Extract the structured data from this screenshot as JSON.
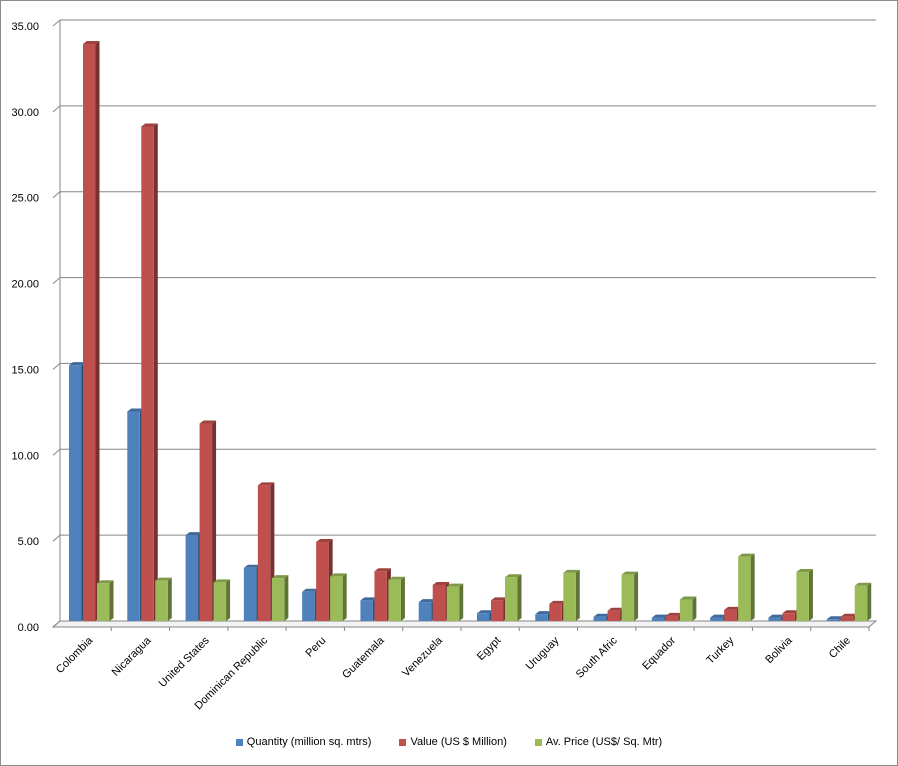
{
  "chart_data": {
    "type": "bar",
    "title": "",
    "xlabel": "",
    "ylabel": "",
    "ylim": [
      0,
      35
    ],
    "ytick_step": 5,
    "ytick_labels": [
      "0.00",
      "5.00",
      "10.00",
      "15.00",
      "20.00",
      "25.00",
      "30.00",
      "35.00"
    ],
    "grid": true,
    "legend_position": "bottom",
    "categories": [
      "Colombia",
      "Nicaragua",
      "United States",
      "Dominican Republic",
      "Peru",
      "Guatemala",
      "Venezuela",
      "Egypt",
      "Uruguay",
      "South Afric",
      "Equador",
      "Turkey",
      "Bolivia",
      "Chile"
    ],
    "series": [
      {
        "name": "Quantity (million sq. mtrs)",
        "color": "#4f81bd",
        "values": [
          14.9,
          12.2,
          5.0,
          3.1,
          1.7,
          1.2,
          1.1,
          0.45,
          0.4,
          0.25,
          0.2,
          0.2,
          0.2,
          0.1
        ]
      },
      {
        "name": "Value (US $ Million)",
        "color": "#c0504d",
        "values": [
          33.6,
          28.8,
          11.5,
          7.9,
          4.6,
          2.9,
          2.1,
          1.2,
          1.0,
          0.6,
          0.3,
          0.65,
          0.45,
          0.25
        ]
      },
      {
        "name": "Av. Price (US$/ Sq. Mtr)",
        "color": "#9bbb59",
        "values": [
          2.2,
          2.35,
          2.25,
          2.5,
          2.6,
          2.4,
          2.0,
          2.55,
          2.8,
          2.7,
          1.25,
          3.75,
          2.85,
          2.05
        ]
      }
    ]
  }
}
